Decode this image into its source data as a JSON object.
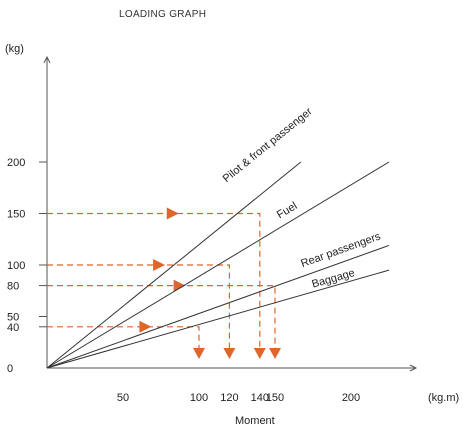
{
  "chart_data": {
    "type": "line",
    "title": "LOADING GRAPH",
    "xlabel": "Moment",
    "x_unit": "(kg.m)",
    "y_unit": "(kg)",
    "xlim": [
      0,
      225
    ],
    "ylim": [
      0,
      225
    ],
    "x_ticks": [
      50,
      100,
      120,
      140,
      150,
      200
    ],
    "y_ticks": [
      0,
      40,
      50,
      80,
      100,
      150,
      200
    ],
    "series": [
      {
        "name": "Pilot & front passenger",
        "points": [
          [
            0,
            0
          ],
          [
            167,
            200
          ]
        ]
      },
      {
        "name": "Fuel",
        "points": [
          [
            0,
            0
          ],
          [
            225,
            200
          ]
        ]
      },
      {
        "name": "Rear passengers",
        "points": [
          [
            0,
            0
          ],
          [
            225,
            119
          ]
        ]
      },
      {
        "name": "Baggage",
        "points": [
          [
            0,
            0
          ],
          [
            225,
            95
          ]
        ]
      }
    ],
    "guides": [
      {
        "weight": 150,
        "moment": 140
      },
      {
        "weight": 100,
        "moment": 120
      },
      {
        "weight": 80,
        "moment": 150
      },
      {
        "weight": 40,
        "moment": 100
      }
    ],
    "colors": {
      "guide": "#e0652a",
      "line": "#333333"
    }
  }
}
